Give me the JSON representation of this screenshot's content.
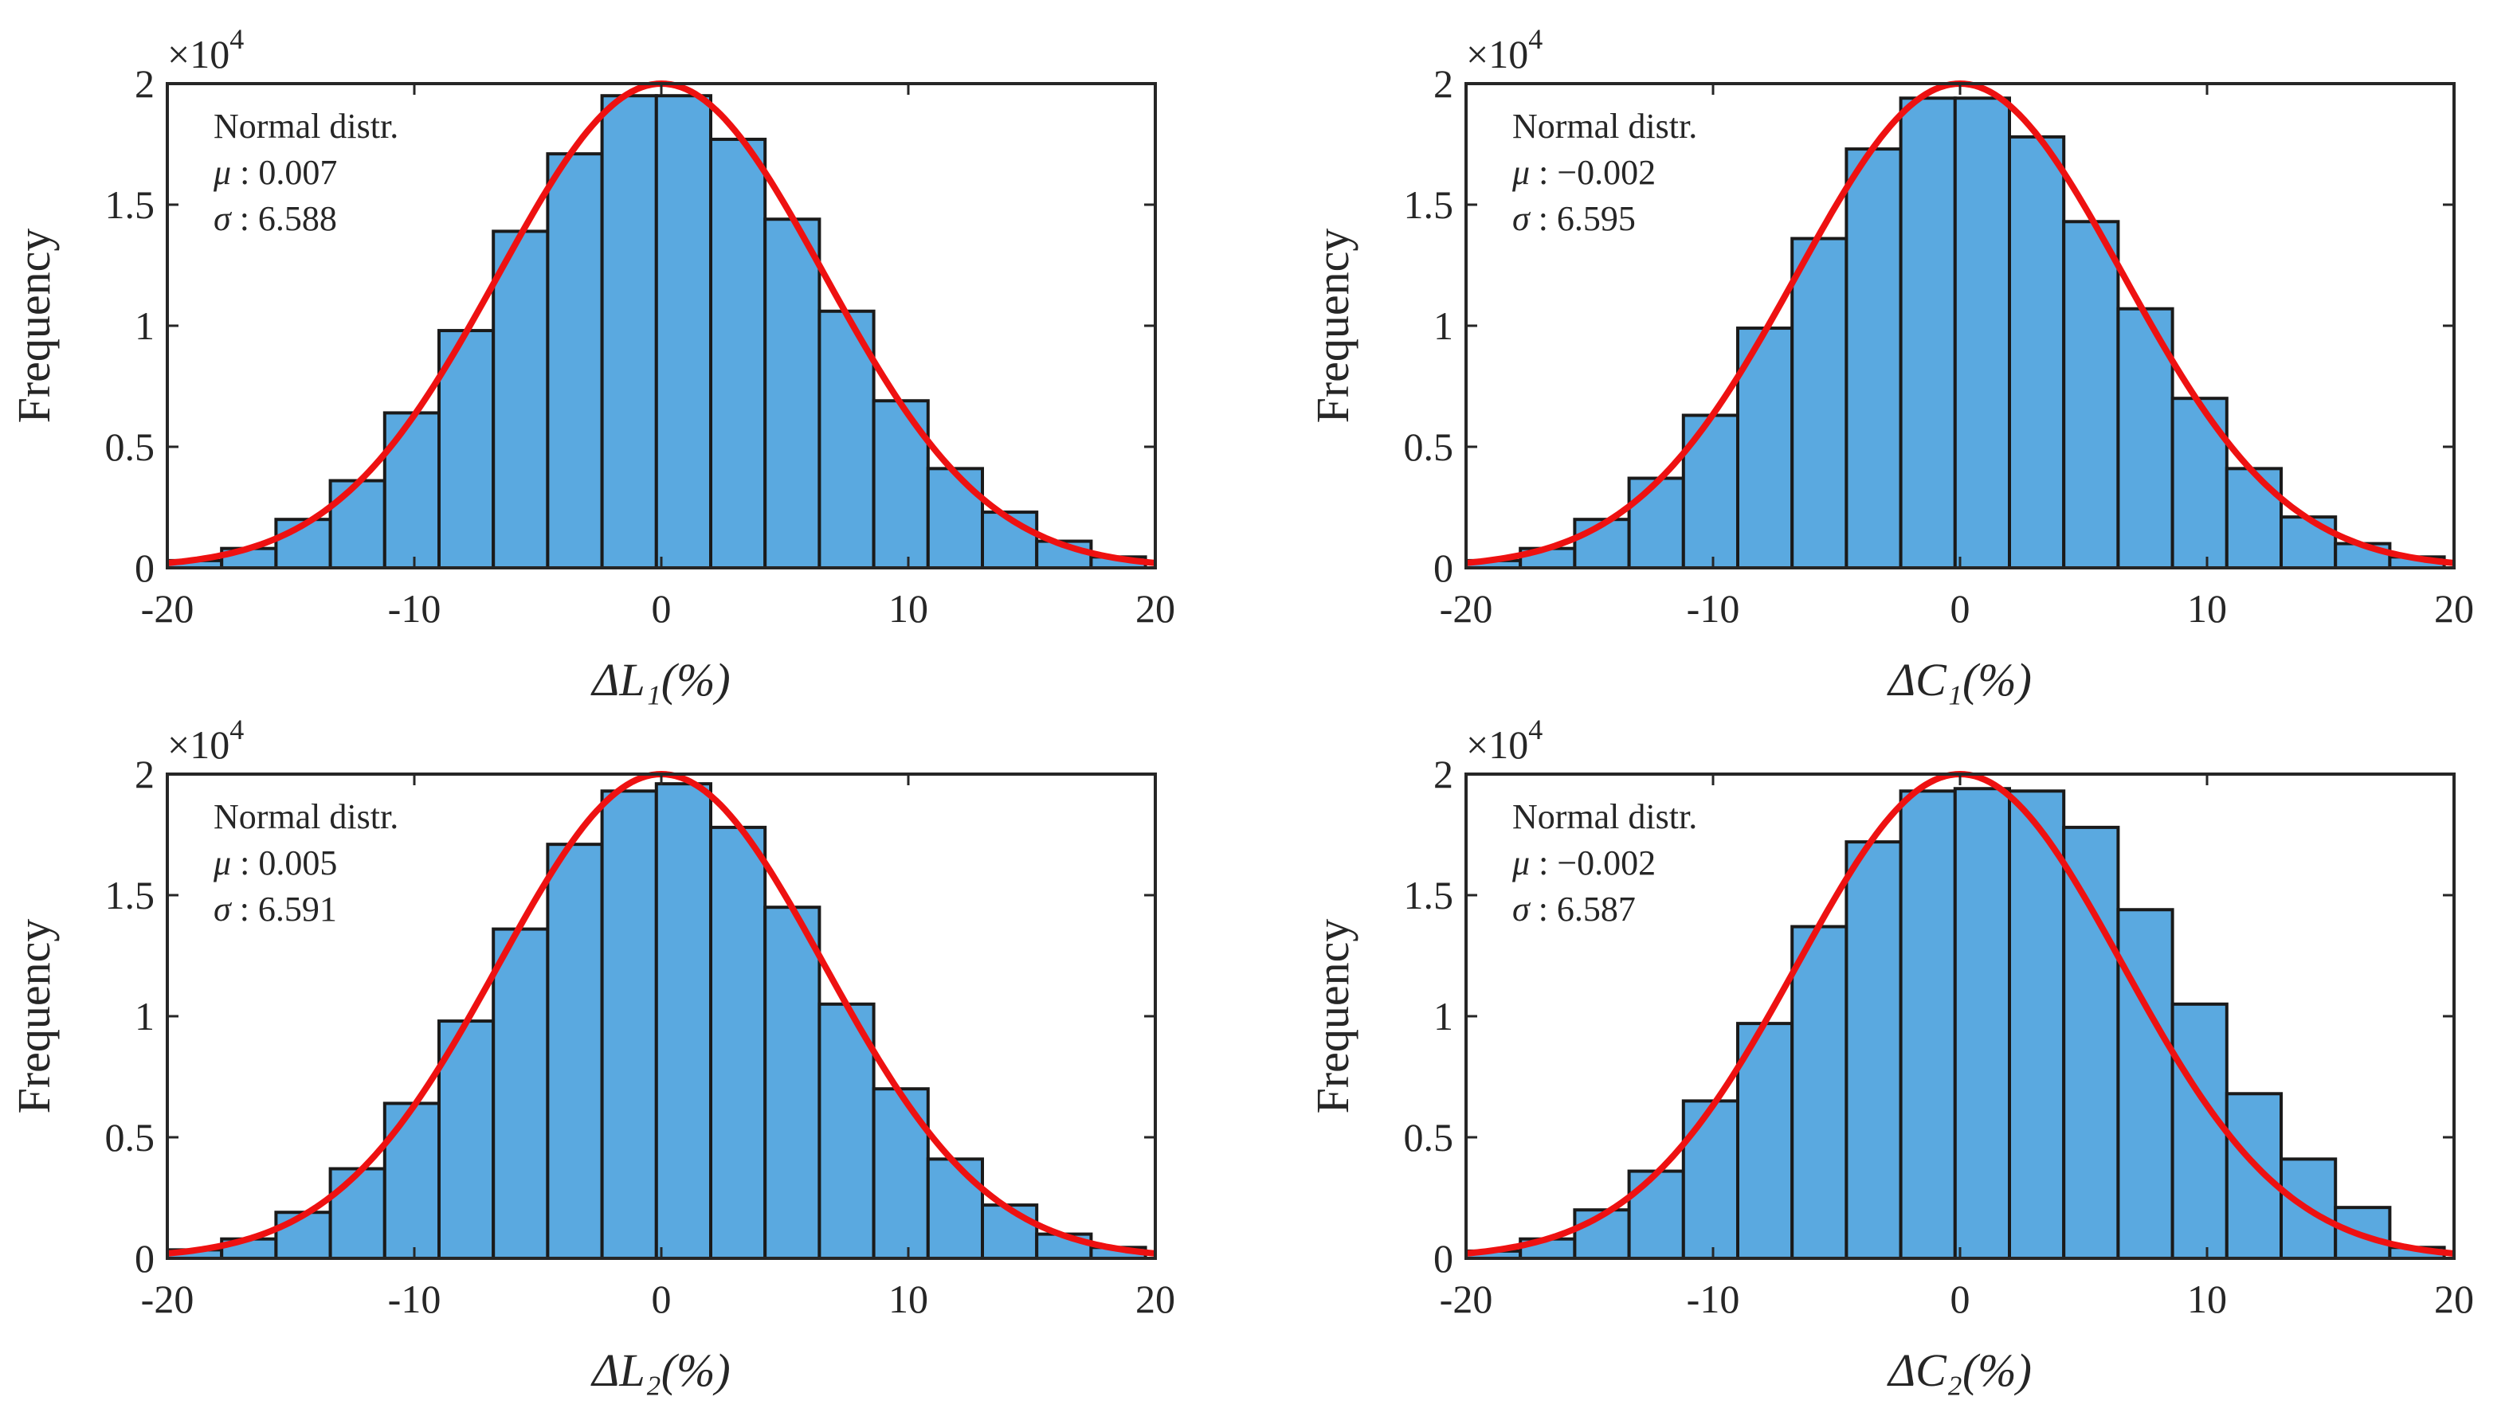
{
  "chart_data": [
    {
      "type": "bar",
      "subtype": "histogram-with-normal-fit",
      "xlabel": "ΔL₁(%)",
      "ylabel": "Frequency",
      "y_exponent_label": "×10",
      "y_exponent_power": "4",
      "xlim": [
        -20,
        20
      ],
      "ylim": [
        0,
        20000
      ],
      "xticks": [
        "-20",
        "-10",
        "0",
        "10",
        "20"
      ],
      "yticks": [
        "0",
        "0.5",
        "1",
        "1.5",
        "2"
      ],
      "bin_edges": [
        -20,
        -17.8,
        -15.6,
        -13.4,
        -11.2,
        -9.0,
        -6.8,
        -4.6,
        -2.4,
        -0.2,
        2.0,
        4.2,
        6.4,
        8.6,
        10.8,
        13.0,
        15.2,
        17.4,
        19.6
      ],
      "values": [
        300,
        800,
        2000,
        3600,
        6400,
        9800,
        13900,
        17100,
        19500,
        19500,
        17700,
        14400,
        10600,
        6900,
        4100,
        2300,
        1100,
        450
      ],
      "fit": {
        "distribution": "Normal",
        "mu": 0.007,
        "sigma": 6.588,
        "peak": 20000
      },
      "legend": {
        "line1": "Normal distr.",
        "mu_symbol": "μ",
        "mu_text": " : 0.007",
        "sigma_symbol": "σ",
        "sigma_text": " : 6.588"
      }
    },
    {
      "type": "bar",
      "subtype": "histogram-with-normal-fit",
      "xlabel": "ΔC₁(%)",
      "ylabel": "Frequency",
      "y_exponent_label": "×10",
      "y_exponent_power": "4",
      "xlim": [
        -20,
        20
      ],
      "ylim": [
        0,
        20000
      ],
      "xticks": [
        "-20",
        "-10",
        "0",
        "10",
        "20"
      ],
      "yticks": [
        "0",
        "0.5",
        "1",
        "1.5",
        "2"
      ],
      "bin_edges": [
        -20,
        -17.8,
        -15.6,
        -13.4,
        -11.2,
        -9.0,
        -6.8,
        -4.6,
        -2.4,
        -0.2,
        2.0,
        4.2,
        6.4,
        8.6,
        10.8,
        13.0,
        15.2,
        17.4,
        19.6
      ],
      "values": [
        300,
        800,
        2000,
        3700,
        6300,
        9900,
        13600,
        17300,
        19400,
        19400,
        17800,
        14300,
        10700,
        7000,
        4100,
        2100,
        1000,
        450
      ],
      "fit": {
        "distribution": "Normal",
        "mu": -0.002,
        "sigma": 6.595,
        "peak": 20000
      },
      "legend": {
        "line1": "Normal distr.",
        "mu_symbol": "μ",
        "mu_text": " : −0.002",
        "sigma_symbol": "σ",
        "sigma_text": " : 6.595"
      }
    },
    {
      "type": "bar",
      "subtype": "histogram-with-normal-fit",
      "xlabel": "ΔL₂(%)",
      "ylabel": "Frequency",
      "y_exponent_label": "×10",
      "y_exponent_power": "4",
      "xlim": [
        -20,
        20
      ],
      "ylim": [
        0,
        20000
      ],
      "xticks": [
        "-20",
        "-10",
        "0",
        "10",
        "20"
      ],
      "yticks": [
        "0",
        "0.5",
        "1",
        "1.5",
        "2"
      ],
      "bin_edges": [
        -20,
        -17.8,
        -15.6,
        -13.4,
        -11.2,
        -9.0,
        -6.8,
        -4.6,
        -2.4,
        -0.2,
        2.0,
        4.2,
        6.4,
        8.6,
        10.8,
        13.0,
        15.2,
        17.4,
        19.6
      ],
      "values": [
        350,
        800,
        1900,
        3700,
        6400,
        9800,
        13600,
        17100,
        19300,
        19600,
        17800,
        14500,
        10500,
        7000,
        4100,
        2200,
        1000,
        450
      ],
      "fit": {
        "distribution": "Normal",
        "mu": 0.005,
        "sigma": 6.591,
        "peak": 20000
      },
      "legend": {
        "line1": "Normal distr.",
        "mu_symbol": "μ",
        "mu_text": " : 0.005",
        "sigma_symbol": "σ",
        "sigma_text": " : 6.591"
      }
    },
    {
      "type": "bar",
      "subtype": "histogram-with-normal-fit",
      "xlabel": "ΔC₂(%)",
      "ylabel": "Frequency",
      "y_exponent_label": "×10",
      "y_exponent_power": "4",
      "xlim": [
        -20,
        20
      ],
      "ylim": [
        0,
        20000
      ],
      "xticks": [
        "-20",
        "-10",
        "0",
        "10",
        "20"
      ],
      "yticks": [
        "0",
        "0.5",
        "1",
        "1.5",
        "2"
      ],
      "bin_edges": [
        -20,
        -17.8,
        -15.6,
        -13.4,
        -11.2,
        -9.0,
        -6.8,
        -4.6,
        -2.4,
        -0.2,
        2.0,
        4.2,
        6.4,
        8.6,
        10.8,
        13.0,
        15.2,
        17.4,
        19.6
      ],
      "values": [
        300,
        800,
        2000,
        3600,
        6500,
        9700,
        13700,
        17200,
        19300,
        19400,
        19300,
        17800,
        14400,
        10500,
        6800,
        4100,
        2100,
        450
      ],
      "fit": {
        "distribution": "Normal",
        "mu": -0.002,
        "sigma": 6.587,
        "peak": 20000
      },
      "legend": {
        "line1": "Normal distr.",
        "mu_symbol": "μ",
        "mu_text": " : −0.002",
        "sigma_symbol": "σ",
        "sigma_text": " : 6.587"
      }
    }
  ],
  "colors": {
    "bar_fill": "#5aa9e0",
    "bar_edge": "#1a1a1a",
    "fit_line": "#ee1111",
    "axes": "#262626"
  }
}
